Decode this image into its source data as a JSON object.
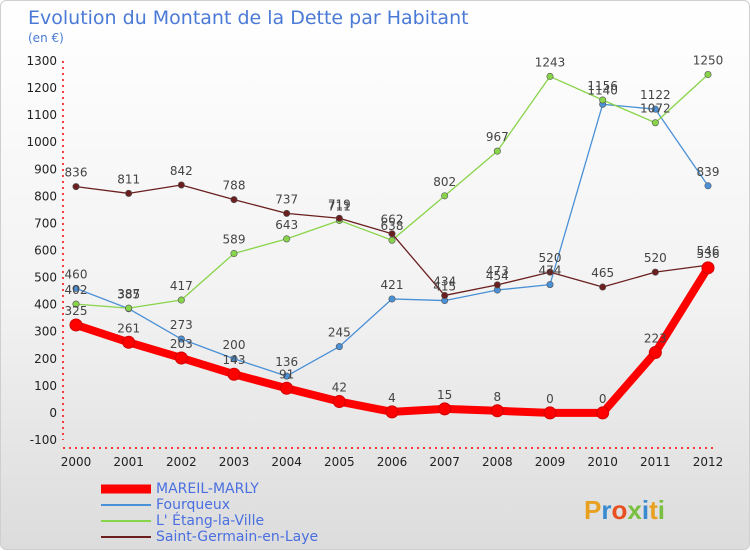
{
  "title": "Evolution du Montant de la Dette par Habitant",
  "subtitle": "(en €)",
  "logo_text": "Proxiti",
  "chart_data": {
    "type": "line",
    "x": [
      "2000",
      "2001",
      "2002",
      "2003",
      "2004",
      "2005",
      "2006",
      "2007",
      "2008",
      "2009",
      "2010",
      "2011",
      "2012"
    ],
    "ylim": [
      -100,
      1300
    ],
    "yticks": [
      -100,
      0,
      100,
      200,
      300,
      400,
      500,
      600,
      700,
      800,
      900,
      1000,
      1100,
      1200,
      1300
    ],
    "grid": false,
    "legend_position": "bottom-left",
    "series": [
      {
        "name": "MAREIL-MARLY",
        "color": "#ff0000",
        "values": [
          325,
          261,
          203,
          143,
          91,
          42,
          4,
          15,
          8,
          0,
          0,
          223,
          536
        ]
      },
      {
        "name": "Fourqueux",
        "color": "#4a90d6",
        "values": [
          460,
          385,
          273,
          200,
          136,
          245,
          421,
          415,
          454,
          474,
          1140,
          1122,
          839
        ]
      },
      {
        "name": "L' Étang-la-Ville",
        "color": "#88d44a",
        "values": [
          402,
          387,
          417,
          589,
          643,
          711,
          638,
          802,
          967,
          1243,
          1156,
          1072,
          1250
        ]
      },
      {
        "name": "Saint-Germain-en-Laye",
        "color": "#6b1f1f",
        "values": [
          836,
          811,
          842,
          788,
          737,
          719,
          662,
          434,
          473,
          520,
          465,
          520,
          546
        ]
      }
    ]
  }
}
